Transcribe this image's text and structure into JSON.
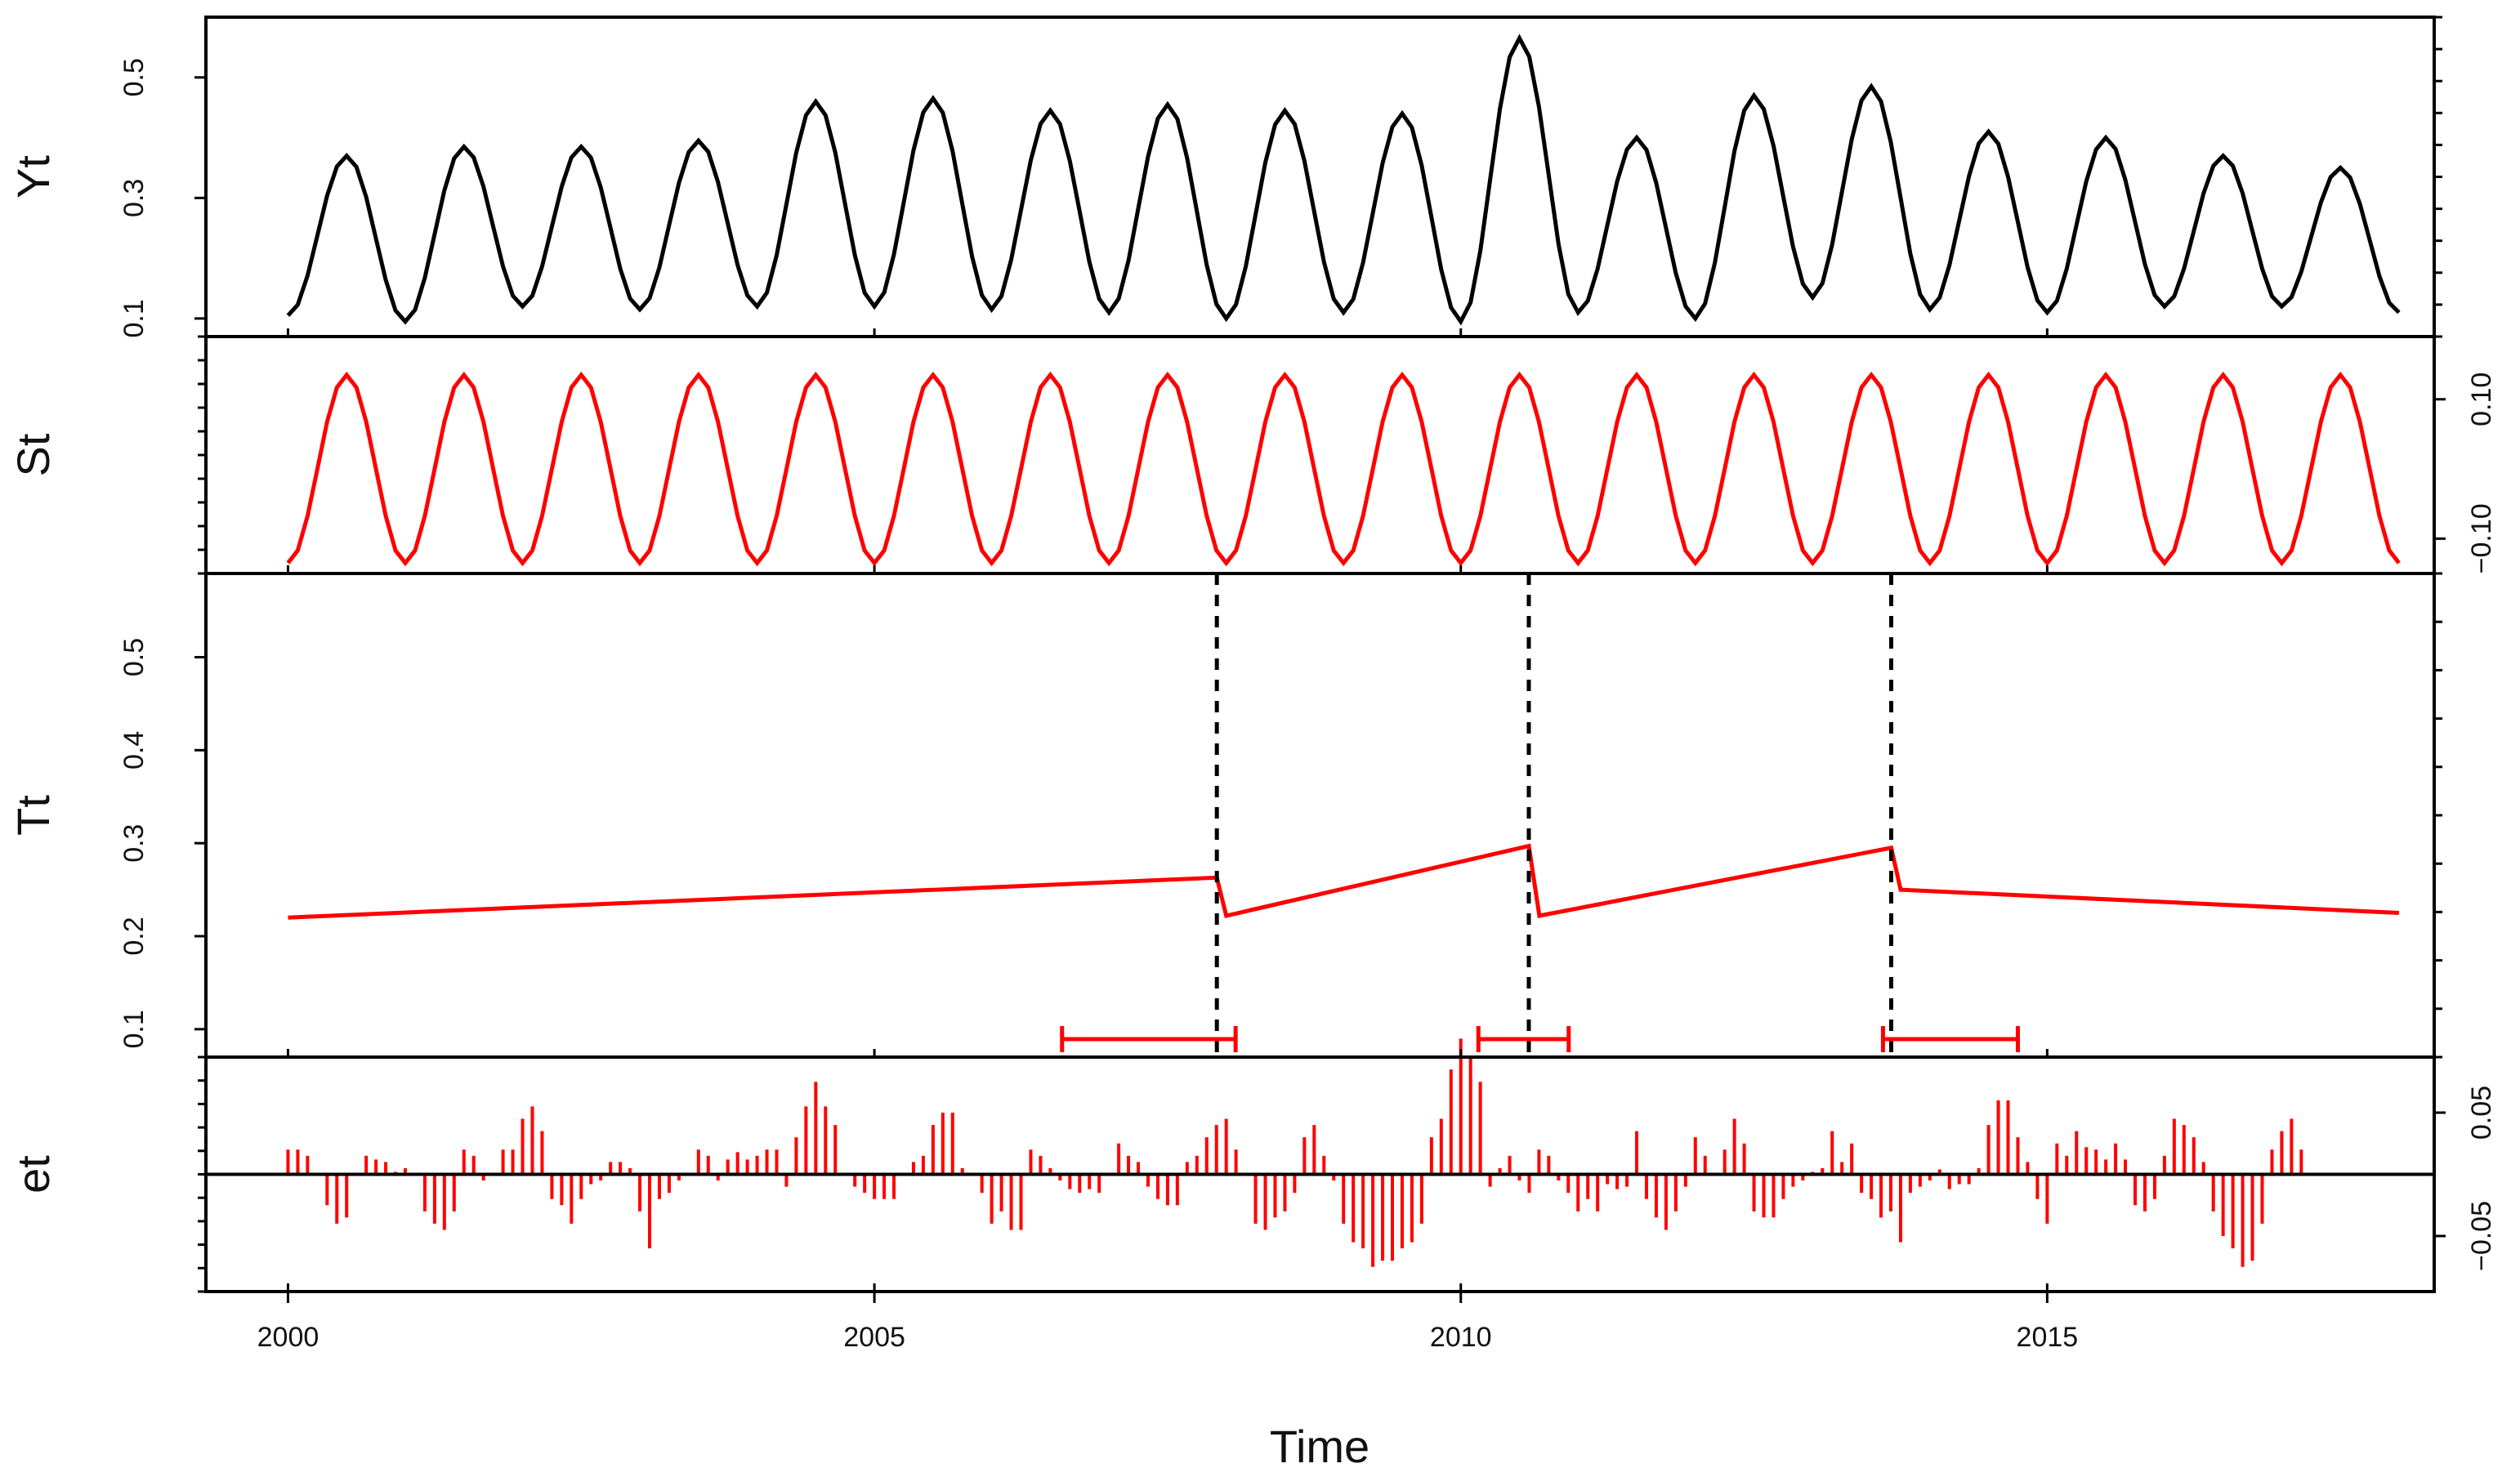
{
  "chart_data": {
    "type": "line",
    "title": "",
    "xlabel": "Time",
    "xlim": [
      1999.3,
      2018.3
    ],
    "x_ticks": [
      {
        "value": 2000,
        "label": "2000"
      },
      {
        "value": 2005,
        "label": "2005"
      },
      {
        "value": 2010,
        "label": "2010"
      },
      {
        "value": 2015,
        "label": "2015"
      }
    ],
    "panels": [
      {
        "name": "Yt",
        "ylabel": "Yt",
        "axis_side": "left",
        "color": "#000000",
        "ylim": [
          0.07,
          0.6
        ],
        "y_ticks": [
          {
            "value": 0.1,
            "label": "0.1"
          },
          {
            "value": 0.3,
            "label": "0.3"
          },
          {
            "value": 0.5,
            "label": "0.5"
          }
        ],
        "peaks": [
          0.37,
          0.385,
          0.385,
          0.395,
          0.46,
          0.465,
          0.445,
          0.455,
          0.445,
          0.44,
          0.565,
          0.4,
          0.47,
          0.485,
          0.41,
          0.4,
          0.37,
          0.35
        ],
        "troughs": [
          0.105,
          0.095,
          0.12,
          0.115,
          0.12,
          0.12,
          0.115,
          0.11,
          0.1,
          0.11,
          0.095,
          0.11,
          0.1,
          0.135,
          0.115,
          0.11,
          0.12,
          0.12,
          0.11
        ]
      },
      {
        "name": "St",
        "ylabel": "St",
        "axis_side": "right",
        "color": "#ff0000",
        "ylim": [
          -0.15,
          0.19
        ],
        "y_ticks": [
          {
            "value": -0.1,
            "label": "−0.10"
          },
          {
            "value": 0.1,
            "label": "0.10"
          }
        ],
        "amplitude": 0.135,
        "baseline": 0.0
      },
      {
        "name": "Tt",
        "ylabel": "Tt",
        "axis_side": "left",
        "color": "#ff0000",
        "ylim": [
          0.07,
          0.59
        ],
        "y_ticks": [
          {
            "value": 0.1,
            "label": "0.1"
          },
          {
            "value": 0.2,
            "label": "0.2"
          },
          {
            "value": 0.3,
            "label": "0.3"
          },
          {
            "value": 0.4,
            "label": "0.4"
          },
          {
            "value": 0.5,
            "label": "0.5"
          }
        ],
        "segments": [
          {
            "x": [
              2000.0,
              2007.92
            ],
            "y": [
              0.22,
              0.263
            ]
          },
          {
            "x": [
              2008.0,
              2010.58
            ],
            "y": [
              0.222,
              0.297
            ]
          },
          {
            "x": [
              2010.67,
              2013.67
            ],
            "y": [
              0.222,
              0.295
            ]
          },
          {
            "x": [
              2013.75,
              2018.0
            ],
            "y": [
              0.25,
              0.225
            ]
          }
        ],
        "breakpoints": [
          2007.92,
          2010.58,
          2013.67
        ],
        "confidence_intervals": [
          {
            "low": 2006.6,
            "high": 2008.08
          },
          {
            "low": 2010.15,
            "high": 2010.92
          },
          {
            "low": 2013.6,
            "high": 2014.75
          }
        ]
      },
      {
        "name": "et",
        "ylabel": "et",
        "axis_side": "right",
        "color": "#ff0000",
        "ylim": [
          -0.095,
          0.095
        ],
        "y_ticks": [
          {
            "value": -0.05,
            "label": "−0.05"
          },
          {
            "value": 0.05,
            "label": "0.05"
          }
        ],
        "x_start": 2000.0,
        "x_step": 0.0833333,
        "values": [
          0.02,
          0.02,
          0.015,
          0,
          -0.025,
          -0.04,
          -0.035,
          0,
          0.015,
          0.012,
          0.01,
          0.002,
          0.005,
          0,
          -0.03,
          -0.04,
          -0.045,
          -0.03,
          0.02,
          0.015,
          -0.005,
          0,
          0.02,
          0.02,
          0.045,
          0.055,
          0.035,
          -0.02,
          -0.025,
          -0.04,
          -0.02,
          -0.008,
          -0.005,
          0.01,
          0.01,
          0.005,
          -0.03,
          -0.06,
          -0.02,
          -0.015,
          -0.005,
          0,
          0.02,
          0.015,
          -0.005,
          0.012,
          0.018,
          0.012,
          0.015,
          0.02,
          0.02,
          -0.01,
          0.03,
          0.055,
          0.075,
          0.055,
          0.04,
          0,
          -0.01,
          -0.015,
          -0.02,
          -0.02,
          -0.02,
          0,
          0.01,
          0.015,
          0.04,
          0.05,
          0.05,
          0.005,
          0,
          -0.015,
          -0.04,
          -0.03,
          -0.045,
          -0.045,
          0.02,
          0.015,
          0.005,
          -0.005,
          -0.012,
          -0.015,
          -0.012,
          -0.015,
          0,
          0.025,
          0.015,
          0.01,
          -0.01,
          -0.02,
          -0.025,
          -0.025,
          0.01,
          0.015,
          0.03,
          0.04,
          0.045,
          0.02,
          0,
          -0.04,
          -0.045,
          -0.035,
          -0.03,
          -0.015,
          0.03,
          0.04,
          0.015,
          -0.005,
          -0.04,
          -0.055,
          -0.06,
          -0.075,
          -0.07,
          -0.07,
          -0.06,
          -0.055,
          -0.04,
          0.03,
          0.045,
          0.085,
          0.11,
          0.095,
          0.075,
          -0.01,
          0.005,
          0.015,
          -0.005,
          -0.015,
          0.02,
          0.015,
          -0.005,
          -0.015,
          -0.03,
          -0.02,
          -0.03,
          -0.008,
          -0.012,
          -0.01,
          0.035,
          -0.02,
          -0.035,
          -0.045,
          -0.03,
          -0.01,
          0.03,
          0.015,
          0,
          0.02,
          0.045,
          0.025,
          -0.03,
          -0.035,
          -0.035,
          -0.02,
          -0.01,
          -0.005,
          0.002,
          0.005,
          0.035,
          0.01,
          0.025,
          -0.015,
          -0.02,
          -0.035,
          -0.03,
          -0.055,
          -0.015,
          -0.01,
          -0.005,
          0.004,
          -0.012,
          -0.008,
          -0.008,
          0.005,
          0.04,
          0.06,
          0.06,
          0.03,
          0.01,
          -0.02,
          -0.04,
          0.025,
          0.015,
          0.035,
          0.022,
          0.02,
          0.012,
          0.025,
          0.012,
          -0.025,
          -0.03,
          -0.02,
          0.015,
          0.045,
          0.04,
          0.03,
          0.01,
          -0.03,
          -0.05,
          -0.06,
          -0.075,
          -0.07,
          -0.04,
          0.02,
          0.035,
          0.045,
          0.02
        ]
      }
    ]
  }
}
